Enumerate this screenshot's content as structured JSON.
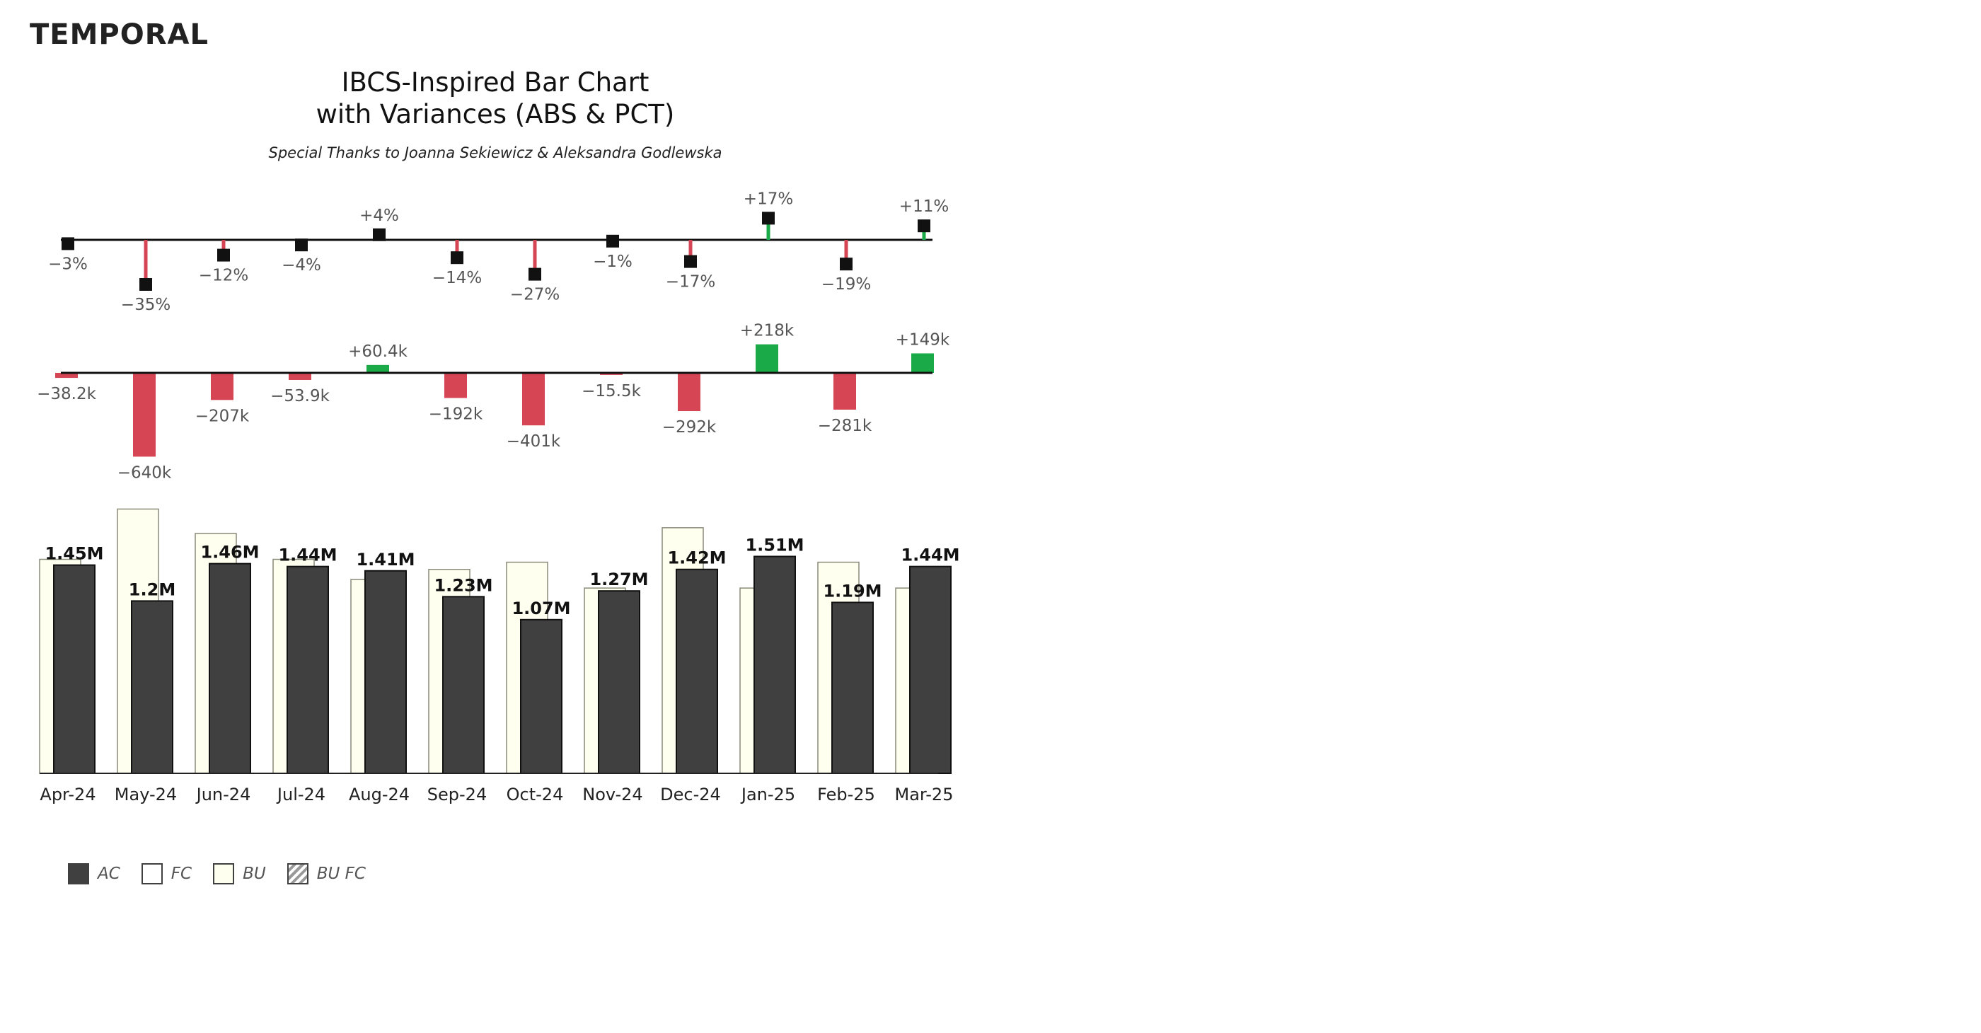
{
  "brand": "TEMPORAL",
  "colors": {
    "ac": "#404040",
    "bu": "#fffff0",
    "negative": "#d64554",
    "positive": "#1aaa48",
    "axis": "#111111"
  },
  "chart_data": {
    "type": "bar",
    "title_line1": "IBCS-Inspired Bar Chart",
    "title_line2": "with Variances (ABS & PCT)",
    "subtitle": "Special Thanks to Joanna Sekiewicz & Aleksandra Godlewska",
    "categories": [
      "Apr-24",
      "May-24",
      "Jun-24",
      "Jul-24",
      "Aug-24",
      "Sep-24",
      "Oct-24",
      "Nov-24",
      "Dec-24",
      "Jan-25",
      "Feb-25",
      "Mar-25"
    ],
    "series": [
      {
        "name": "AC",
        "values": [
          1.45,
          1.2,
          1.46,
          1.44,
          1.41,
          1.23,
          1.07,
          1.27,
          1.42,
          1.51,
          1.19,
          1.44
        ]
      },
      {
        "name": "BU",
        "values": [
          1.49,
          1.84,
          1.67,
          1.49,
          1.35,
          1.42,
          1.47,
          1.29,
          1.71,
          1.29,
          1.47,
          1.29
        ]
      }
    ],
    "ac_labels": [
      "1.45M",
      "1.2M",
      "1.46M",
      "1.44M",
      "1.41M",
      "1.23M",
      "1.07M",
      "1.27M",
      "1.42M",
      "1.51M",
      "1.19M",
      "1.44M"
    ],
    "variance_abs": [
      -38.2,
      -640,
      -207,
      -53.9,
      60.4,
      -192,
      -401,
      -15.5,
      -292,
      218,
      -281,
      149
    ],
    "variance_abs_labels": [
      "−38.2k",
      "−640k",
      "−207k",
      "−53.9k",
      "+60.4k",
      "−192k",
      "−401k",
      "−15.5k",
      "−292k",
      "+218k",
      "−281k",
      "+149k"
    ],
    "variance_pct": [
      -3,
      -35,
      -12,
      -4,
      4,
      -14,
      -27,
      -1,
      -17,
      17,
      -19,
      11
    ],
    "variance_pct_labels": [
      "−3%",
      "−35%",
      "−12%",
      "−4%",
      "+4%",
      "−14%",
      "−27%",
      "−1%",
      "−17%",
      "+17%",
      "−19%",
      "+11%"
    ],
    "legend": [
      {
        "key": "ac",
        "label": "AC"
      },
      {
        "key": "fc",
        "label": "FC"
      },
      {
        "key": "bu",
        "label": "BU"
      },
      {
        "key": "bufc",
        "label": "BU FC"
      }
    ]
  }
}
